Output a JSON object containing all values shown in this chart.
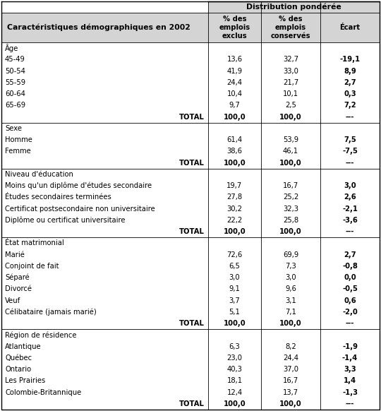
{
  "header_main": "Distribution pondérée",
  "col_headers": [
    "% des\nemplois\nexclus",
    "% des\nemplois\nconservés",
    "Écart"
  ],
  "left_header": "Caractéristiques démographiques en 2002",
  "rows": [
    {
      "label": "Âge",
      "cat": true,
      "col1": "",
      "col2": "",
      "col3": ""
    },
    {
      "label": "45-49",
      "cat": false,
      "col1": "13,6",
      "col2": "32,7",
      "col3": "-19,1"
    },
    {
      "label": "50-54",
      "cat": false,
      "col1": "41,9",
      "col2": "33,0",
      "col3": "8,9"
    },
    {
      "label": "55-59",
      "cat": false,
      "col1": "24,4",
      "col2": "21,7",
      "col3": "2,7"
    },
    {
      "label": "60-64",
      "cat": false,
      "col1": "10,4",
      "col2": "10,1",
      "col3": "0,3"
    },
    {
      "label": "65-69",
      "cat": false,
      "col1": "9,7",
      "col2": "2,5",
      "col3": "7,2"
    },
    {
      "label": "TOTAL",
      "cat": false,
      "col1": "100,0",
      "col2": "100,0",
      "col3": "---",
      "total": true
    },
    {
      "label": "Sexe",
      "cat": true,
      "col1": "",
      "col2": "",
      "col3": ""
    },
    {
      "label": "Homme",
      "cat": false,
      "col1": "61,4",
      "col2": "53,9",
      "col3": "7,5"
    },
    {
      "label": "Femme",
      "cat": false,
      "col1": "38,6",
      "col2": "46,1",
      "col3": "-7,5"
    },
    {
      "label": "TOTAL",
      "cat": false,
      "col1": "100,0",
      "col2": "100,0",
      "col3": "---",
      "total": true
    },
    {
      "label": "Niveau d'éducation",
      "cat": true,
      "col1": "",
      "col2": "",
      "col3": ""
    },
    {
      "label": "Moins qu'un diplôme d'études secondaire",
      "cat": false,
      "col1": "19,7",
      "col2": "16,7",
      "col3": "3,0"
    },
    {
      "label": "Études secondaires terminées",
      "cat": false,
      "col1": "27,8",
      "col2": "25,2",
      "col3": "2,6"
    },
    {
      "label": "Certificat postsecondaire non universitaire",
      "cat": false,
      "col1": "30,2",
      "col2": "32,3",
      "col3": "-2,1"
    },
    {
      "label": "Diplôme ou certificat universitaire",
      "cat": false,
      "col1": "22,2",
      "col2": "25,8",
      "col3": "-3,6"
    },
    {
      "label": "TOTAL",
      "cat": false,
      "col1": "100,0",
      "col2": "100,0",
      "col3": "---",
      "total": true
    },
    {
      "label": "État matrimonial",
      "cat": true,
      "col1": "",
      "col2": "",
      "col3": ""
    },
    {
      "label": "Marié",
      "cat": false,
      "col1": "72,6",
      "col2": "69,9",
      "col3": "2,7"
    },
    {
      "label": "Conjoint de fait",
      "cat": false,
      "col1": "6,5",
      "col2": "7,3",
      "col3": "-0,8"
    },
    {
      "label": "Séparé",
      "cat": false,
      "col1": "3,0",
      "col2": "3,0",
      "col3": "0,0"
    },
    {
      "label": "Divorcé",
      "cat": false,
      "col1": "9,1",
      "col2": "9,6",
      "col3": "-0,5"
    },
    {
      "label": "Veuf",
      "cat": false,
      "col1": "3,7",
      "col2": "3,1",
      "col3": "0,6"
    },
    {
      "label": "Célibataire (jamais marié)",
      "cat": false,
      "col1": "5,1",
      "col2": "7,1",
      "col3": "-2,0"
    },
    {
      "label": "TOTAL",
      "cat": false,
      "col1": "100,0",
      "col2": "100,0",
      "col3": "---",
      "total": true
    },
    {
      "label": "Région de résidence",
      "cat": true,
      "col1": "",
      "col2": "",
      "col3": ""
    },
    {
      "label": "Atlantique",
      "cat": false,
      "col1": "6,3",
      "col2": "8,2",
      "col3": "-1,9"
    },
    {
      "label": "Québec",
      "cat": false,
      "col1": "23,0",
      "col2": "24,4",
      "col3": "-1,4"
    },
    {
      "label": "Ontario",
      "cat": false,
      "col1": "40,3",
      "col2": "37,0",
      "col3": "3,3"
    },
    {
      "label": "Les Prairies",
      "cat": false,
      "col1": "18,1",
      "col2": "16,7",
      "col3": "1,4"
    },
    {
      "label": "Colombie-Britannique",
      "cat": false,
      "col1": "12,4",
      "col2": "13,7",
      "col3": "-1,3"
    },
    {
      "label": "TOTAL",
      "cat": false,
      "col1": "100,0",
      "col2": "100,0",
      "col3": "---",
      "total": true
    }
  ],
  "bg_color": "#ffffff",
  "gray_bg": "#d4d4d4",
  "border_color": "#000000",
  "font_size": 7.2,
  "header_font_size": 7.8,
  "figwidth": 5.4,
  "figheight": 5.82,
  "dpi": 100
}
